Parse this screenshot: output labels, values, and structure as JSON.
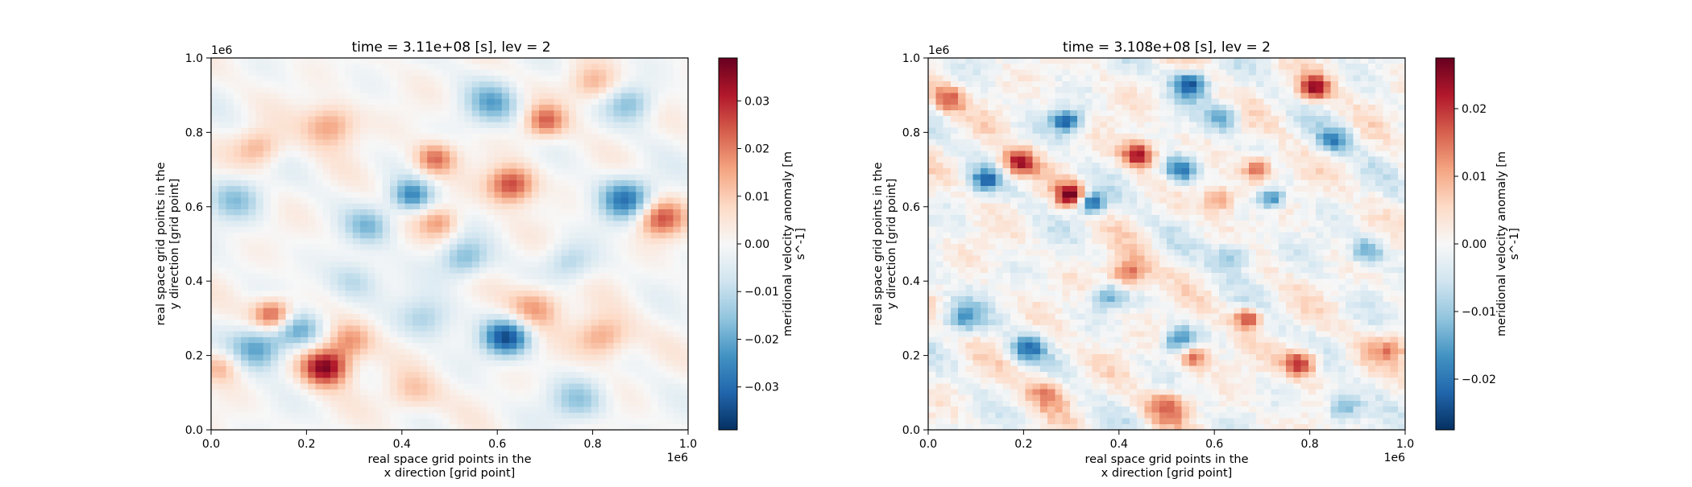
{
  "colormap": {
    "name": "RdBu_r",
    "stops": [
      "#053061",
      "#2166ac",
      "#4393c3",
      "#92c5de",
      "#d1e5f0",
      "#f7f7f7",
      "#fddbc7",
      "#f4a582",
      "#d6604d",
      "#b2182b",
      "#67001f"
    ]
  },
  "chart_data": [
    {
      "type": "heatmap",
      "title": "time = 3.11e+08 [s], lev = 2",
      "xlabel_lines": [
        "real space grid points in the",
        "x direction [grid point]"
      ],
      "ylabel_lines": [
        "real space grid points in the",
        "y direction [grid point]"
      ],
      "x_ticks": [
        "0.0",
        "0.2",
        "0.4",
        "0.6",
        "0.8",
        "1.0"
      ],
      "y_ticks": [
        "0.0",
        "0.2",
        "0.4",
        "0.6",
        "0.8",
        "1.0"
      ],
      "x_scale_label": "1e6",
      "y_scale_label": "1e6",
      "xlim": [
        0,
        1000000
      ],
      "ylim": [
        0,
        1000000
      ],
      "colorbar": {
        "label_lines": [
          "meridional velocity anomaly [m",
          "s^-1]"
        ],
        "vmin": -0.039,
        "vmax": 0.039,
        "ticks": [
          -0.03,
          -0.02,
          -0.01,
          0.0,
          0.01,
          0.02,
          0.03
        ],
        "tick_labels": [
          "−0.03",
          "−0.02",
          "−0.01",
          "0.00",
          "0.01",
          "0.02",
          "0.03"
        ]
      },
      "field": {
        "style": "smooth",
        "grid_size": 64,
        "features": [
          {
            "x": 0.24,
            "y": 0.17,
            "amp": 0.037,
            "sigma": 0.035
          },
          {
            "x": 0.13,
            "y": 0.31,
            "amp": 0.028,
            "sigma": 0.03
          },
          {
            "x": 0.29,
            "y": 0.24,
            "amp": 0.018,
            "sigma": 0.035
          },
          {
            "x": 0.63,
            "y": 0.66,
            "amp": 0.028,
            "sigma": 0.035
          },
          {
            "x": 0.47,
            "y": 0.73,
            "amp": 0.022,
            "sigma": 0.03
          },
          {
            "x": 0.7,
            "y": 0.83,
            "amp": 0.022,
            "sigma": 0.03
          },
          {
            "x": 0.94,
            "y": 0.57,
            "amp": 0.026,
            "sigma": 0.035
          },
          {
            "x": 0.82,
            "y": 0.25,
            "amp": 0.018,
            "sigma": 0.04
          },
          {
            "x": 0.68,
            "y": 0.33,
            "amp": 0.018,
            "sigma": 0.04
          },
          {
            "x": 0.25,
            "y": 0.82,
            "amp": 0.018,
            "sigma": 0.04
          },
          {
            "x": 0.1,
            "y": 0.76,
            "amp": 0.015,
            "sigma": 0.035
          },
          {
            "x": 0.48,
            "y": 0.56,
            "amp": 0.016,
            "sigma": 0.03
          },
          {
            "x": 0.42,
            "y": 0.1,
            "amp": 0.012,
            "sigma": 0.04
          },
          {
            "x": 0.02,
            "y": 0.17,
            "amp": 0.014,
            "sigma": 0.03
          },
          {
            "x": 0.8,
            "y": 0.93,
            "amp": 0.014,
            "sigma": 0.035
          },
          {
            "x": 0.62,
            "y": 0.25,
            "amp": -0.034,
            "sigma": 0.035
          },
          {
            "x": 0.87,
            "y": 0.62,
            "amp": -0.028,
            "sigma": 0.04
          },
          {
            "x": 0.42,
            "y": 0.63,
            "amp": -0.024,
            "sigma": 0.03
          },
          {
            "x": 0.1,
            "y": 0.22,
            "amp": -0.022,
            "sigma": 0.04
          },
          {
            "x": 0.18,
            "y": 0.27,
            "amp": -0.02,
            "sigma": 0.035
          },
          {
            "x": 0.05,
            "y": 0.62,
            "amp": -0.015,
            "sigma": 0.04
          },
          {
            "x": 0.33,
            "y": 0.55,
            "amp": -0.015,
            "sigma": 0.035
          },
          {
            "x": 0.59,
            "y": 0.88,
            "amp": -0.018,
            "sigma": 0.04
          },
          {
            "x": 0.88,
            "y": 0.88,
            "amp": -0.016,
            "sigma": 0.035
          },
          {
            "x": 0.53,
            "y": 0.46,
            "amp": -0.018,
            "sigma": 0.035
          },
          {
            "x": 0.77,
            "y": 0.08,
            "amp": -0.015,
            "sigma": 0.04
          },
          {
            "x": 0.45,
            "y": 0.3,
            "amp": -0.013,
            "sigma": 0.04
          },
          {
            "x": 0.3,
            "y": 0.4,
            "amp": -0.012,
            "sigma": 0.04
          },
          {
            "x": 0.75,
            "y": 0.45,
            "amp": -0.012,
            "sigma": 0.035
          }
        ]
      }
    },
    {
      "type": "heatmap",
      "title": "time = 3.108e+08 [s], lev = 2",
      "xlabel_lines": [
        "real space grid points in the",
        "x direction [grid point]"
      ],
      "ylabel_lines": [
        "real space grid points in the",
        "y direction [grid point]"
      ],
      "x_ticks": [
        "0.0",
        "0.2",
        "0.4",
        "0.6",
        "0.8",
        "1.0"
      ],
      "y_ticks": [
        "0.0",
        "0.2",
        "0.4",
        "0.6",
        "0.8",
        "1.0"
      ],
      "x_scale_label": "1e6",
      "y_scale_label": "1e6",
      "xlim": [
        0,
        1000000
      ],
      "ylim": [
        0,
        1000000
      ],
      "colorbar": {
        "label_lines": [
          "meridional velocity anomaly [m",
          "s^-1]"
        ],
        "vmin": -0.0275,
        "vmax": 0.0275,
        "ticks": [
          -0.02,
          -0.01,
          0.0,
          0.01,
          0.02
        ],
        "tick_labels": [
          "−0.02",
          "−0.01",
          "0.00",
          "0.01",
          "0.02"
        ]
      },
      "field": {
        "style": "pixelated",
        "grid_size": 64,
        "features": [
          {
            "x": 0.3,
            "y": 0.63,
            "amp": 0.027,
            "sigma": 0.022
          },
          {
            "x": 0.19,
            "y": 0.72,
            "amp": 0.022,
            "sigma": 0.025
          },
          {
            "x": 0.44,
            "y": 0.74,
            "amp": 0.024,
            "sigma": 0.025
          },
          {
            "x": 0.78,
            "y": 0.18,
            "amp": 0.022,
            "sigma": 0.025
          },
          {
            "x": 0.81,
            "y": 0.92,
            "amp": 0.022,
            "sigma": 0.025
          },
          {
            "x": 0.04,
            "y": 0.89,
            "amp": 0.016,
            "sigma": 0.025
          },
          {
            "x": 0.67,
            "y": 0.3,
            "amp": 0.02,
            "sigma": 0.02
          },
          {
            "x": 0.42,
            "y": 0.42,
            "amp": 0.018,
            "sigma": 0.03
          },
          {
            "x": 0.56,
            "y": 0.2,
            "amp": 0.018,
            "sigma": 0.025
          },
          {
            "x": 0.69,
            "y": 0.7,
            "amp": 0.018,
            "sigma": 0.025
          },
          {
            "x": 0.5,
            "y": 0.06,
            "amp": 0.014,
            "sigma": 0.03
          },
          {
            "x": 0.25,
            "y": 0.1,
            "amp": 0.012,
            "sigma": 0.03
          },
          {
            "x": 0.97,
            "y": 0.22,
            "amp": 0.012,
            "sigma": 0.025
          },
          {
            "x": 0.61,
            "y": 0.62,
            "amp": 0.014,
            "sigma": 0.025
          },
          {
            "x": 0.34,
            "y": 0.61,
            "amp": -0.026,
            "sigma": 0.022
          },
          {
            "x": 0.53,
            "y": 0.7,
            "amp": -0.022,
            "sigma": 0.025
          },
          {
            "x": 0.55,
            "y": 0.93,
            "amp": -0.024,
            "sigma": 0.025
          },
          {
            "x": 0.29,
            "y": 0.83,
            "amp": -0.022,
            "sigma": 0.022
          },
          {
            "x": 0.72,
            "y": 0.62,
            "amp": -0.018,
            "sigma": 0.02
          },
          {
            "x": 0.12,
            "y": 0.67,
            "amp": -0.018,
            "sigma": 0.022
          },
          {
            "x": 0.21,
            "y": 0.22,
            "amp": -0.018,
            "sigma": 0.025
          },
          {
            "x": 0.53,
            "y": 0.24,
            "amp": -0.018,
            "sigma": 0.025
          },
          {
            "x": 0.87,
            "y": 0.06,
            "amp": -0.016,
            "sigma": 0.025
          },
          {
            "x": 0.92,
            "y": 0.48,
            "amp": -0.016,
            "sigma": 0.025
          },
          {
            "x": 0.85,
            "y": 0.78,
            "amp": -0.016,
            "sigma": 0.025
          },
          {
            "x": 0.07,
            "y": 0.3,
            "amp": -0.014,
            "sigma": 0.03
          },
          {
            "x": 0.38,
            "y": 0.36,
            "amp": -0.012,
            "sigma": 0.025
          },
          {
            "x": 0.64,
            "y": 0.47,
            "amp": -0.012,
            "sigma": 0.03
          },
          {
            "x": 0.62,
            "y": 0.84,
            "amp": -0.014,
            "sigma": 0.025
          }
        ]
      }
    }
  ]
}
